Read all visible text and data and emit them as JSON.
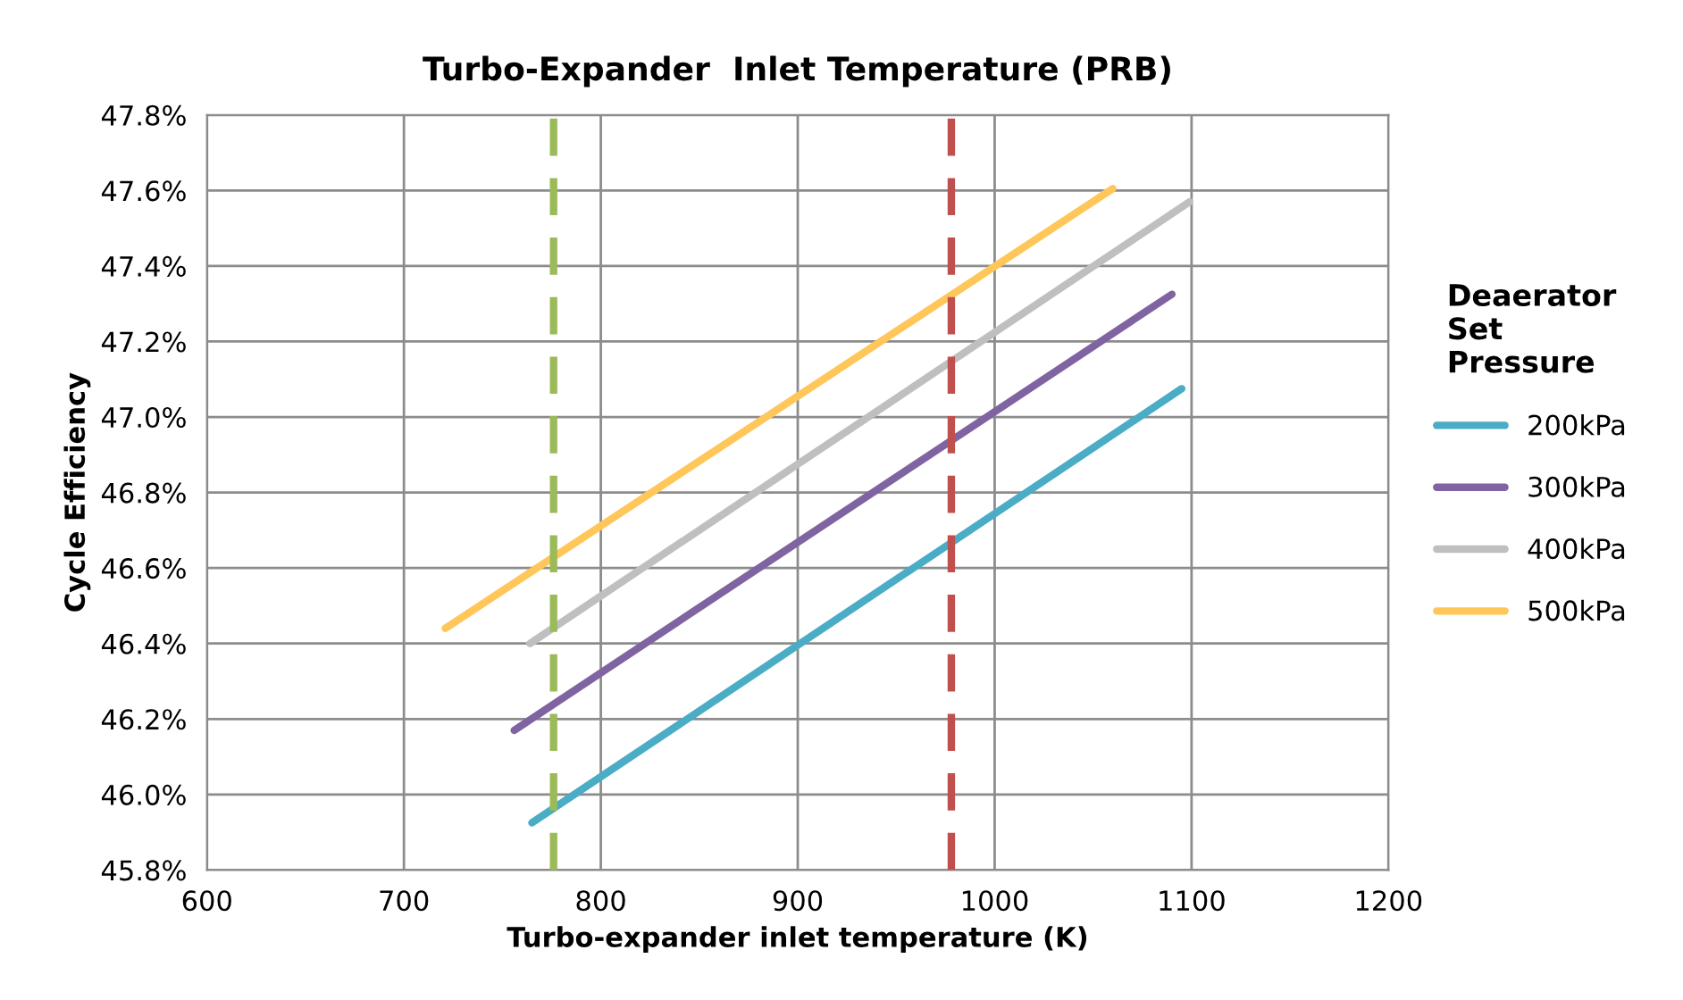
{
  "chart_data": {
    "type": "line",
    "title": "Turbo-Expander  Inlet Temperature (PRB)",
    "xlabel": "Turbo-expander inlet temperature (K)",
    "ylabel": "Cycle Efficiency",
    "legend_title": "Deaerator\nSet\nPressure",
    "series": [
      {
        "name": "200kPa",
        "color": "#4bacc6",
        "x": [
          765,
          1095
        ],
        "values": [
          45.925,
          47.075
        ]
      },
      {
        "name": "300kPa",
        "color": "#8064a2",
        "x": [
          756,
          1090
        ],
        "values": [
          46.17,
          47.325
        ]
      },
      {
        "name": "400kPa",
        "color": "#bfbfbf",
        "x": [
          764,
          1099
        ],
        "values": [
          46.4,
          47.57
        ]
      },
      {
        "name": "500kPa",
        "color": "#ffc65a",
        "x": [
          721,
          1060
        ],
        "values": [
          46.44,
          47.605
        ]
      }
    ],
    "ref_lines": [
      {
        "axis": "x",
        "value": 776,
        "color": "#9bbb59",
        "line_style": "dashed"
      },
      {
        "axis": "x",
        "value": 978,
        "color": "#c0504d",
        "line_style": "dashed"
      }
    ],
    "xlim": [
      600,
      1200
    ],
    "xticks": [
      600,
      700,
      800,
      900,
      1000,
      1100,
      1200
    ],
    "ylim": [
      45.8,
      47.8
    ],
    "yticks": [
      {
        "value": 45.8,
        "label": "45.8%"
      },
      {
        "value": 46.0,
        "label": "46.0%"
      },
      {
        "value": 46.2,
        "label": "46.2%"
      },
      {
        "value": 46.4,
        "label": "46.4%"
      },
      {
        "value": 46.6,
        "label": "46.6%"
      },
      {
        "value": 46.8,
        "label": "46.8%"
      },
      {
        "value": 47.0,
        "label": "47.0%"
      },
      {
        "value": 47.2,
        "label": "47.2%"
      },
      {
        "value": 47.4,
        "label": "47.4%"
      },
      {
        "value": 47.6,
        "label": "47.6%"
      },
      {
        "value": 47.8,
        "label": "47.8%"
      }
    ],
    "grid": true,
    "legend": "right",
    "marker": "none",
    "line_style": "solid"
  }
}
